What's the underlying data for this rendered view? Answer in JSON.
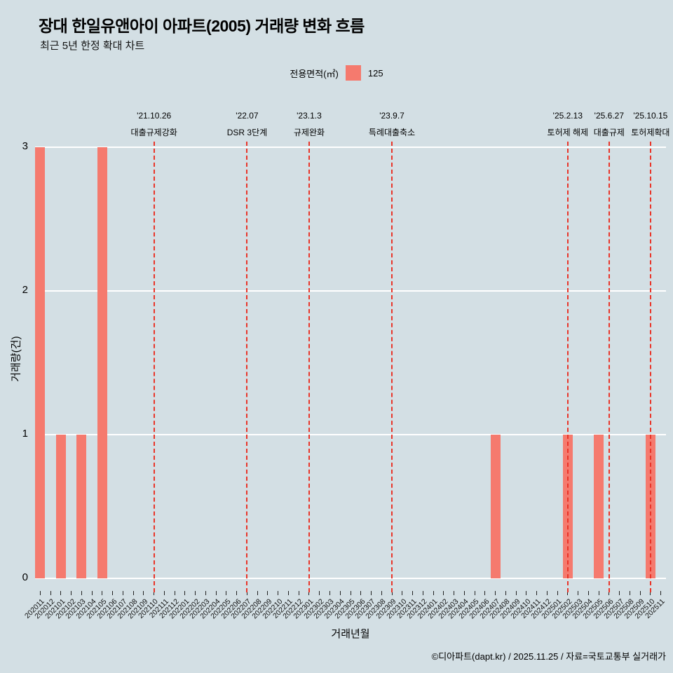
{
  "header": {
    "title": "장대 한일유앤아이 아파트(2005) 거래량 변화 흐름",
    "subtitle": "최근 5년 한정 확대 차트"
  },
  "legend": {
    "title": "전용면적(㎡)",
    "items": [
      {
        "label": "125",
        "color": "#f57a6e"
      }
    ]
  },
  "chart_data": {
    "type": "bar",
    "title": "장대 한일유앤아이 아파트(2005) 거래량 변화 흐름",
    "subtitle": "최근 5년 한정 확대 차트",
    "xlabel": "거래년월",
    "ylabel": "거래량(건)",
    "ylim": [
      0,
      3
    ],
    "yticks": [
      0,
      1,
      2,
      3
    ],
    "grid": true,
    "legend_position": "top-center",
    "categories": [
      "202011",
      "202012",
      "202101",
      "202102",
      "202103",
      "202104",
      "202105",
      "202106",
      "202107",
      "202108",
      "202109",
      "202110",
      "202111",
      "202112",
      "202201",
      "202202",
      "202203",
      "202204",
      "202205",
      "202206",
      "202207",
      "202208",
      "202209",
      "202210",
      "202211",
      "202212",
      "202301",
      "202302",
      "202303",
      "202304",
      "202305",
      "202306",
      "202307",
      "202308",
      "202309",
      "202310",
      "202311",
      "202312",
      "202401",
      "202402",
      "202403",
      "202404",
      "202405",
      "202406",
      "202407",
      "202408",
      "202409",
      "202410",
      "202411",
      "202412",
      "202501",
      "202502",
      "202503",
      "202504",
      "202505",
      "202506",
      "202507",
      "202508",
      "202509",
      "202510",
      "202511"
    ],
    "series": [
      {
        "name": "125",
        "color": "#f57a6e",
        "values": [
          3,
          0,
          1,
          0,
          1,
          0,
          3,
          0,
          0,
          0,
          0,
          0,
          0,
          0,
          0,
          0,
          0,
          0,
          0,
          0,
          0,
          0,
          0,
          0,
          0,
          0,
          0,
          0,
          0,
          0,
          0,
          0,
          0,
          0,
          0,
          0,
          0,
          0,
          0,
          0,
          0,
          0,
          0,
          0,
          1,
          0,
          0,
          0,
          0,
          0,
          0,
          1,
          0,
          0,
          1,
          0,
          0,
          0,
          0,
          1,
          0
        ]
      }
    ],
    "events": [
      {
        "date": "'21.10.26",
        "label": "대출규제강화",
        "month": "202110"
      },
      {
        "date": "'22.07",
        "label": "DSR 3단계",
        "month": "202207"
      },
      {
        "date": "'23.1.3",
        "label": "규제완화",
        "month": "202301"
      },
      {
        "date": "'23.9.7",
        "label": "특례대출축소",
        "month": "202309"
      },
      {
        "date": "'25.2.13",
        "label": "토허제 해제",
        "month": "202502"
      },
      {
        "date": "'25.6.27",
        "label": "대출규제",
        "month": "202506"
      },
      {
        "date": "'25.10.15",
        "label": "토허제확대",
        "month": "202510"
      }
    ]
  },
  "footer": {
    "credit": "©디아파트(dapt.kr) / 2025.11.25 / 자료=국토교통부 실거래가"
  },
  "colors": {
    "background": "#d3dfe4",
    "bar": "#f57a6e",
    "event_line": "#e93428",
    "grid": "#ffffff"
  }
}
